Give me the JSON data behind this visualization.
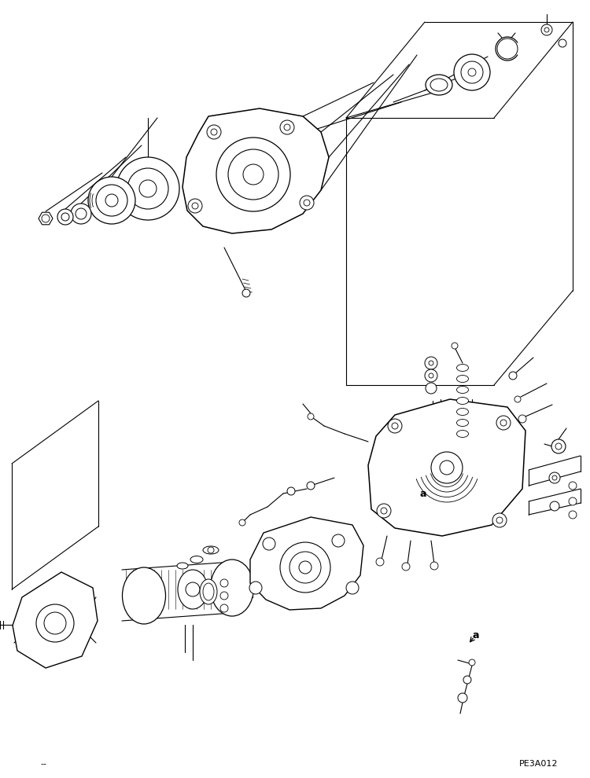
{
  "bg_color": "#ffffff",
  "line_color": "#000000",
  "fig_width": 7.5,
  "fig_height": 9.9,
  "dpi": 100,
  "watermark": "PE3A012",
  "label_a": "a",
  "bottom_label": "--"
}
